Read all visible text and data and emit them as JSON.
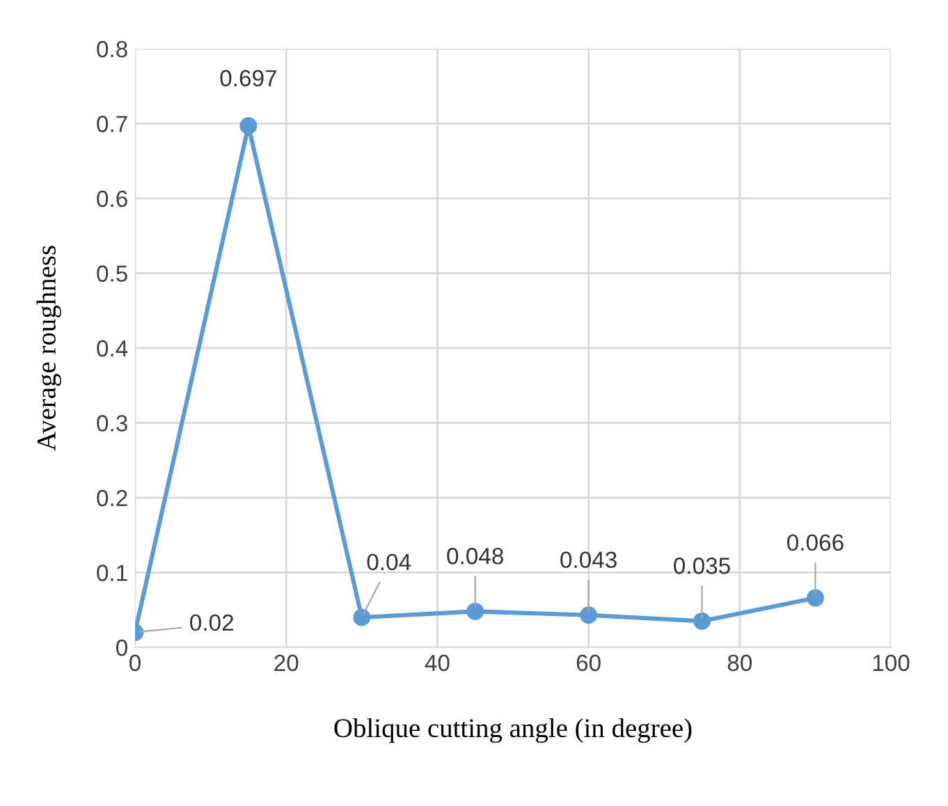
{
  "chart_data": {
    "type": "line",
    "xlabel": "Oblique cutting angle (in degree)",
    "ylabel": "Average roughness",
    "x": [
      0,
      15,
      30,
      45,
      60,
      75,
      90
    ],
    "series": [
      {
        "color": "#5b9bd5",
        "values": [
          0.02,
          0.697,
          0.04,
          0.048,
          0.043,
          0.035,
          0.066
        ]
      }
    ],
    "xlim": [
      0,
      100
    ],
    "xticks": [
      0,
      20,
      40,
      60,
      80,
      100
    ],
    "ylim": [
      0,
      0.8
    ],
    "yticks": [
      0,
      0.1,
      0.2,
      0.3,
      0.4,
      0.5,
      0.6,
      0.7,
      0.8
    ],
    "grid": true,
    "marker": "circle",
    "line_style": "solid",
    "data_labels": true
  }
}
